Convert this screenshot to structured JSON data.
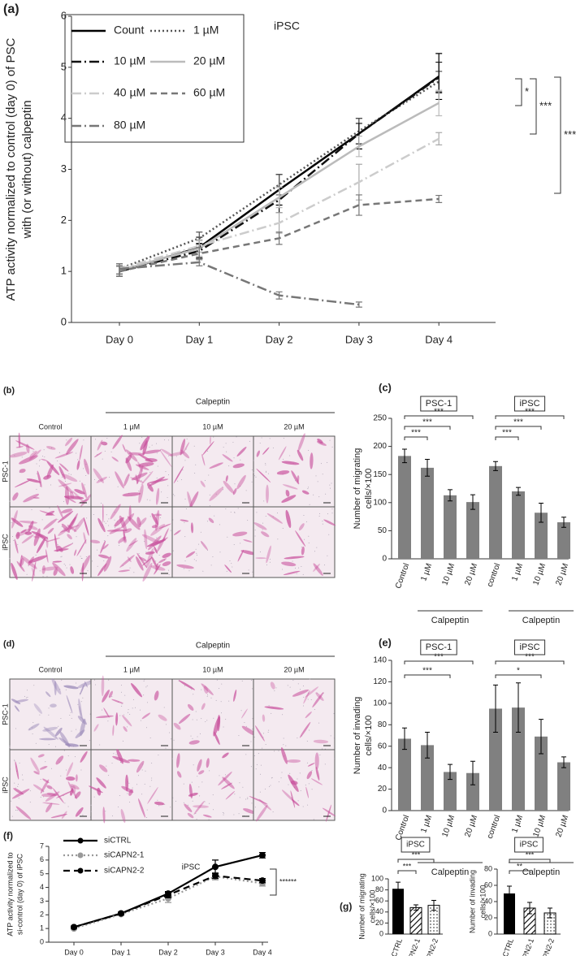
{
  "chart_data": [
    {
      "type": "line",
      "panel": "(a)",
      "title": "iPSC",
      "y_label": [
        "ATP activity normalized to control (day 0) of PSC",
        "with (or without) calpeptin"
      ],
      "categories": [
        "Day 0",
        "Day 1",
        "Day 2",
        "Day 3",
        "Day 4"
      ],
      "ylim": [
        0,
        6
      ],
      "yticks": [
        0,
        1,
        2,
        3,
        4,
        5,
        6
      ],
      "legend": "upper left",
      "series": [
        {
          "name": "Count",
          "color": "#000000",
          "style": "solid",
          "values": [
            1.0,
            1.47,
            2.6,
            3.7,
            4.82
          ],
          "errors": [
            0.1,
            0.2,
            0.3,
            0.3,
            0.45
          ]
        },
        {
          "name": "1 µM",
          "color": "#555555",
          "style": "dotted",
          "values": [
            1.05,
            1.65,
            2.7,
            3.75,
            4.72
          ],
          "errors": [
            0.1,
            0.12,
            0.2,
            0.25,
            0.2
          ]
        },
        {
          "name": "10 µM",
          "color": "#111111",
          "style": "dash-dot",
          "values": [
            1.0,
            1.4,
            2.4,
            3.7,
            4.8
          ],
          "errors": [
            0.1,
            0.15,
            0.25,
            0.2,
            0.3
          ]
        },
        {
          "name": "20 µM",
          "color": "#bbbbbb",
          "style": "solid",
          "values": [
            1.02,
            1.45,
            2.45,
            3.45,
            4.3
          ],
          "errors": [
            0.1,
            0.15,
            0.2,
            0.2,
            0.25
          ]
        },
        {
          "name": "40 µM",
          "color": "#cccccc",
          "style": "dash-dot",
          "values": [
            1.05,
            1.5,
            1.95,
            2.75,
            3.6
          ],
          "errors": [
            0.1,
            0.12,
            0.2,
            0.35,
            0.12
          ]
        },
        {
          "name": "60 µM",
          "color": "#777777",
          "style": "dashed",
          "values": [
            1.0,
            1.35,
            1.65,
            2.3,
            2.42
          ],
          "errors": [
            0.1,
            0.12,
            0.12,
            0.2,
            0.07
          ]
        },
        {
          "name": "80 µM",
          "color": "#777777",
          "style": "dash-dot",
          "values": [
            1.05,
            1.18,
            0.53,
            0.35,
            null
          ],
          "errors": [
            0.1,
            0.07,
            0.07,
            0.05,
            null
          ]
        }
      ],
      "annotations": [
        "*",
        "***",
        "***"
      ]
    },
    {
      "type": "bar",
      "panel": "(c)",
      "y_label": [
        "Number of migrating",
        "cells/×100"
      ],
      "categories": [
        "Control",
        "1 µM",
        "10 µM",
        "20 µM",
        "control",
        "1 µM",
        "10 µM",
        "20 µM"
      ],
      "values": [
        183,
        162,
        113,
        101,
        165,
        120,
        82,
        65
      ],
      "errors": [
        12,
        15,
        10,
        13,
        8,
        7,
        17,
        9
      ],
      "color": "#808080",
      "ylim": [
        0,
        250
      ],
      "yticks": [
        0,
        50,
        100,
        150,
        200,
        250
      ],
      "groups": [
        {
          "label": "PSC-1",
          "sublabel": "Calpeptin"
        },
        {
          "label": "iPSC",
          "sublabel": "Calpeptin"
        }
      ],
      "annotations": [
        "***",
        "***",
        "***",
        "***",
        "***",
        "***"
      ]
    },
    {
      "type": "bar",
      "panel": "(e)",
      "y_label": [
        "Number of invading",
        "cells/×100"
      ],
      "categories": [
        "Control",
        "1 µM",
        "10 µM",
        "20 µM",
        "control",
        "1 µM",
        "10 µM",
        "20 µM"
      ],
      "values": [
        67,
        61,
        36,
        35,
        95,
        96,
        69,
        45
      ],
      "errors": [
        10,
        12,
        7,
        11,
        22,
        23,
        16,
        5
      ],
      "color": "#808080",
      "ylim": [
        0,
        140
      ],
      "yticks": [
        0,
        20,
        40,
        60,
        80,
        100,
        120,
        140
      ],
      "groups": [
        {
          "label": "PSC-1",
          "sublabel": "Calpeptin"
        },
        {
          "label": "iPSC",
          "sublabel": "Calpeptin"
        }
      ],
      "annotations": [
        "***",
        "***",
        "***",
        "*"
      ]
    },
    {
      "type": "line",
      "panel": "(f)",
      "title": "iPSC",
      "y_label": [
        "ATP activity normalized to",
        "si-control (day 0) of iPSC"
      ],
      "categories": [
        "Day 0",
        "Day 1",
        "Day 2",
        "Day 3",
        "Day 4"
      ],
      "ylim": [
        0,
        7
      ],
      "yticks": [
        0,
        1,
        2,
        3,
        4,
        5,
        6,
        7
      ],
      "legend": "upper left",
      "marker": "circle",
      "series": [
        {
          "name": "siCTRL",
          "color": "#000000",
          "style": "solid",
          "values": [
            1.1,
            2.1,
            3.55,
            5.5,
            6.35
          ],
          "errors": [
            0.08,
            0.1,
            0.15,
            0.5,
            0.2
          ]
        },
        {
          "name": "siCAPN2-1",
          "color": "#999999",
          "style": "dotted",
          "values": [
            1.0,
            2.05,
            3.2,
            4.8,
            4.3
          ],
          "errors": [
            0.08,
            0.1,
            0.3,
            0.25,
            0.2
          ]
        },
        {
          "name": "siCAPN2-2",
          "color": "#000000",
          "style": "dashed",
          "values": [
            1.1,
            2.1,
            3.45,
            4.85,
            4.5
          ],
          "errors": [
            0.08,
            0.1,
            0.2,
            0.2,
            0.15
          ]
        }
      ],
      "annotations": [
        "******"
      ]
    },
    {
      "type": "bar",
      "panel": "(g)",
      "title": "iPSC",
      "y_label": [
        "Number of migrating",
        "cells/×100"
      ],
      "categories": [
        "siCTRL",
        "siCAPN2-1",
        "siCAPN2-2"
      ],
      "values": [
        82,
        48,
        52
      ],
      "errors": [
        12,
        5,
        9
      ],
      "color": "#000000",
      "patterns": [
        "solid",
        "hatch",
        "dots"
      ],
      "ylim": [
        0,
        100
      ],
      "yticks": [
        0,
        20,
        40,
        60,
        80,
        100
      ],
      "annotations": [
        "***",
        "***"
      ]
    },
    {
      "type": "bar",
      "title": "iPSC",
      "y_label": [
        "Number of invading",
        "cells/×100"
      ],
      "categories": [
        "siCTRL",
        "siCAPN2-1",
        "siCAPN2-2"
      ],
      "values": [
        50,
        32,
        26
      ],
      "errors": [
        9,
        7,
        6
      ],
      "color": "#000000",
      "patterns": [
        "solid",
        "hatch",
        "dots"
      ],
      "ylim": [
        0,
        80
      ],
      "yticks": [
        0,
        20,
        40,
        60,
        80
      ],
      "annotations": [
        "***",
        "**"
      ]
    }
  ],
  "micrographs": [
    {
      "panel": "(b)",
      "header": "Calpeptin",
      "columns": [
        "Control",
        "1 µM",
        "10 µM",
        "20 µM"
      ],
      "rows": [
        "PSC-1",
        "iPSC"
      ]
    },
    {
      "panel": "(d)",
      "header": "Calpeptin",
      "columns": [
        "Control",
        "1 µM",
        "10 µM",
        "20 µM"
      ],
      "rows": [
        "PSC-1",
        "iPSC"
      ]
    }
  ]
}
